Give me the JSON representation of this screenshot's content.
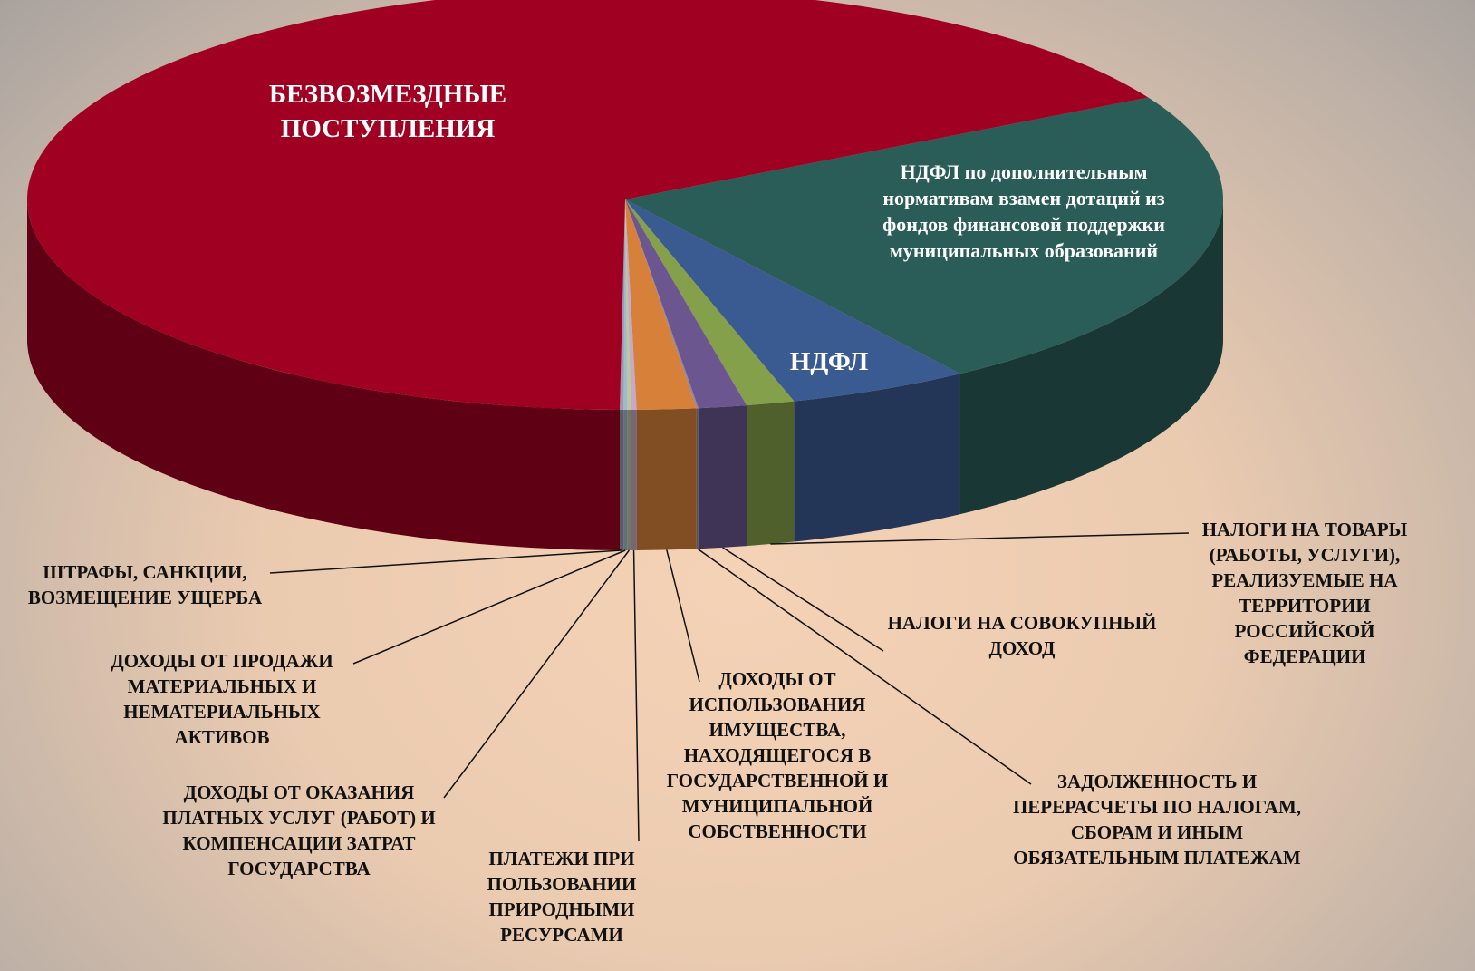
{
  "chart_data": {
    "type": "pie3d",
    "categories": [
      "НДФЛ по дополнительным нормативам взамен дотаций из фондов финансовой поддержки муниципальных образований",
      "НДФЛ",
      "НАЛОГИ НА ТОВАРЫ (РАБОТЫ, УСЛУГИ), РЕАЛИЗУЕМЫЕ НА ТЕРРИТОРИИ РОССИЙСКОЙ ФЕДЕРАЦИИ",
      "НАЛОГИ НА СОВОКУПНЫЙ ДОХОД",
      "ЗАДОЛЖЕННОСТЬ И ПЕРЕРАСЧЕТЫ ПО НАЛОГАМ, СБОРАМ И ИНЫМ ОБЯЗАТЕЛЬНЫМ ПЛАТЕЖАМ",
      "ДОХОДЫ ОТ ИСПОЛЬЗОВАНИЯ ИМУЩЕСТВА, НАХОДЯЩЕГОСЯ В ГОСУДАРСТВЕННОЙ И МУНИЦИПАЛЬНОЙ СОБСТВЕННОСТИ",
      "ПЛАТЕЖИ ПРИ ПОЛЬЗОВАНИИ ПРИРОДНЫМИ РЕСУРСАМИ",
      "ДОХОДЫ ОТ ОКАЗАНИЯ ПЛАТНЫХ УСЛУГ (РАБОТ) И КОМПЕНСАЦИИ ЗАТРАТ ГОСУДАРСТВА",
      "ДОХОДЫ ОТ ПРОДАЖИ МАТЕРИАЛЬНЫХ И НЕМАТЕРИАЛЬНЫХ АКТИВОВ",
      "ШТРАФЫ, САНКЦИИ, ВОЗМЕЩЕНИЕ УЩЕРБА",
      "БЕЗВОЗМЕЗДНЫЕ ПОСТУПЛЕНИЯ"
    ],
    "values": [
      23.6,
      4.9,
      1.3,
      1.3,
      0.05,
      1.6,
      0.15,
      0.1,
      0.1,
      0.1,
      66.8
    ],
    "colors": [
      "#2a5c58",
      "#3a5a92",
      "#84a04a",
      "#6b5690",
      "#8a8aa8",
      "#d7803a",
      "#c8a8c8",
      "#b8cc98",
      "#a0b8d0",
      "#9a9ab0",
      "#a00022"
    ]
  }
}
